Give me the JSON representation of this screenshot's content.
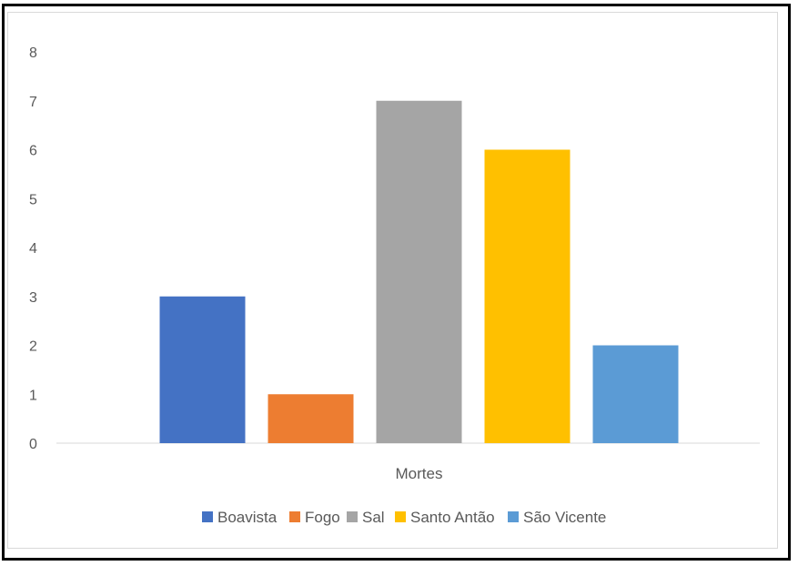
{
  "chart_data": {
    "type": "bar",
    "categories": [
      "Mortes"
    ],
    "series": [
      {
        "name": "Boavista",
        "values": [
          3
        ],
        "color": "#4472C4"
      },
      {
        "name": "Fogo",
        "values": [
          1
        ],
        "color": "#ED7D31"
      },
      {
        "name": "Sal",
        "values": [
          7
        ],
        "color": "#A5A5A5"
      },
      {
        "name": "Santo Antão",
        "values": [
          6
        ],
        "color": "#FFC000"
      },
      {
        "name": "São Vicente",
        "values": [
          2
        ],
        "color": "#5B9BD5"
      }
    ],
    "title": "",
    "xlabel": "",
    "ylabel": "",
    "ylim": [
      0,
      8
    ],
    "yticks": [
      "0",
      "1",
      "2",
      "3",
      "4",
      "5",
      "6",
      "7",
      "8"
    ],
    "grid": false,
    "legend_position": "bottom"
  }
}
